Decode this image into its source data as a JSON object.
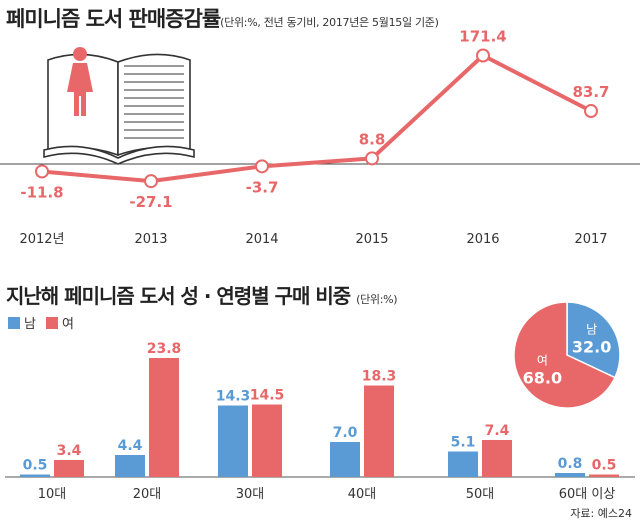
{
  "chart_data": [
    {
      "type": "line",
      "title": "페미니즘 도서 판매증감률",
      "subtitle": "(단위:%, 전년 동기비, 2017년은 5월15일 기준)",
      "x": [
        "2012년",
        "2013",
        "2014",
        "2015",
        "2016",
        "2017"
      ],
      "values": [
        -11.8,
        -27.1,
        -3.7,
        8.8,
        171.4,
        83.7
      ],
      "value_labels": [
        "-11.8",
        "-27.1",
        "-3.7",
        "8.8",
        "171.4",
        "83.7"
      ],
      "ylim": [
        -40,
        185
      ],
      "color": "#e8686a"
    },
    {
      "type": "bar",
      "title": "지난해 페미니즘 도서 성 · 연령별 구매 비중",
      "subtitle": "(단위:%)",
      "categories": [
        "10대",
        "20대",
        "30대",
        "40대",
        "50대",
        "60대 이상"
      ],
      "series": [
        {
          "name": "남",
          "values": [
            0.5,
            4.4,
            14.3,
            7.0,
            5.1,
            0.8
          ],
          "labels": [
            "0.5",
            "4.4",
            "14.3",
            "7.0",
            "5.1",
            "0.8"
          ],
          "color": "#5b9bd5"
        },
        {
          "name": "여",
          "values": [
            3.4,
            23.8,
            14.5,
            18.3,
            7.4,
            0.5
          ],
          "labels": [
            "3.4",
            "23.8",
            "14.5",
            "18.3",
            "7.4",
            "0.5"
          ],
          "color": "#e8686a"
        }
      ],
      "ylim": [
        0,
        25
      ]
    },
    {
      "type": "pie",
      "slices": [
        {
          "name": "남",
          "value": 32.0,
          "label": "32.0",
          "color": "#5b9bd5"
        },
        {
          "name": "여",
          "value": 68.0,
          "label": "68.0",
          "color": "#e8686a"
        }
      ]
    }
  ],
  "source": "자료: 예스24"
}
